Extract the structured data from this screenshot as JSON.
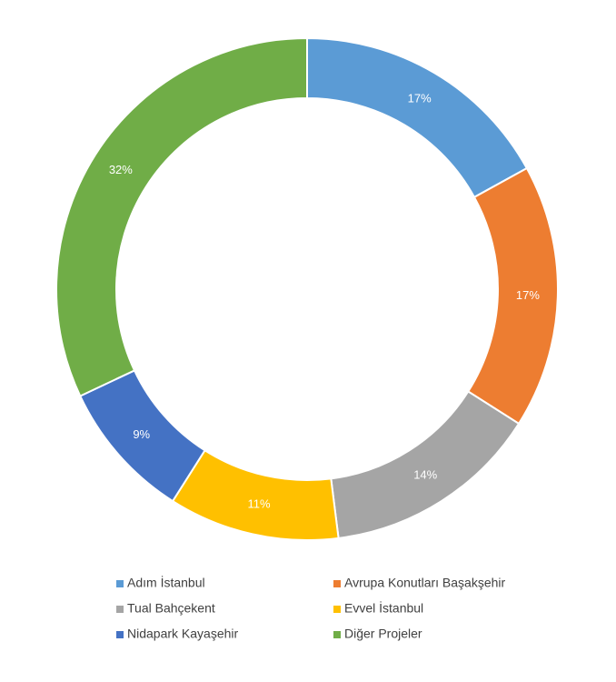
{
  "chart_data": {
    "type": "donut",
    "categories": [
      "Adım İstanbul",
      "Avrupa Konutları Başakşehir",
      "Tual Bahçekent",
      "Evvel İstanbul",
      "Nidapark Kayaşehir",
      "Diğer Projeler"
    ],
    "values": [
      17,
      17,
      14,
      11,
      9,
      32
    ],
    "value_labels": [
      "17%",
      "17%",
      "14%",
      "11%",
      "9%",
      "32%"
    ],
    "colors": [
      "#5b9bd5",
      "#ed7d31",
      "#a5a5a5",
      "#ffc000",
      "#4472c4",
      "#70ad47"
    ],
    "legend": "bottom"
  }
}
